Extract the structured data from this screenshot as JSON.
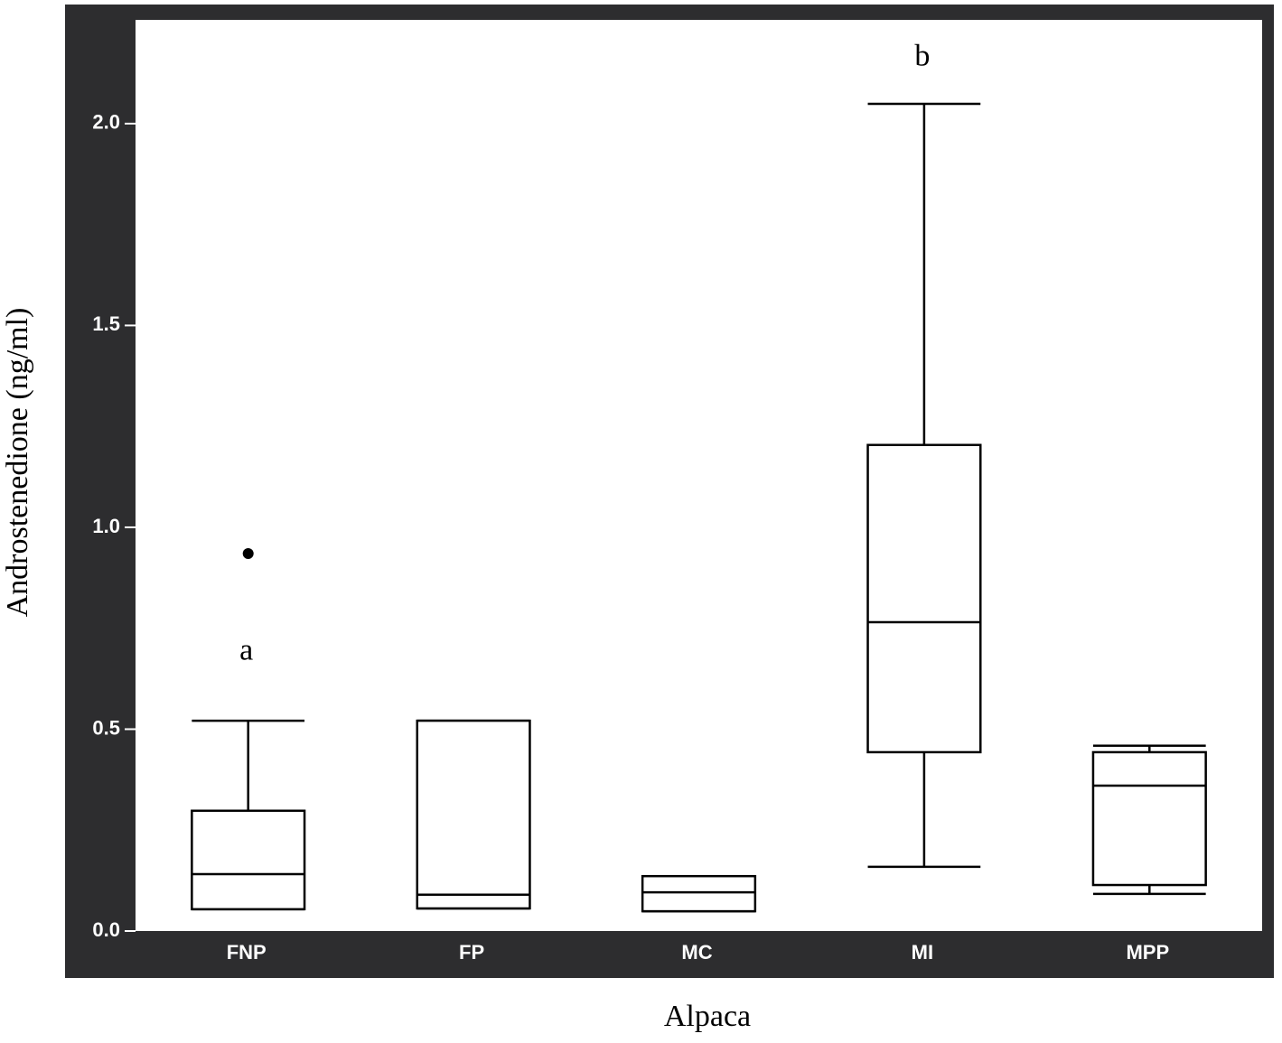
{
  "chart_data": {
    "type": "box",
    "y_label": "Androstenedione (ng/ml)",
    "x_label": "Alpaca",
    "categories": [
      "FNP",
      "FP",
      "MC",
      "MI",
      "MPP"
    ],
    "boxes": [
      {
        "min": 0.054,
        "q1": 0.054,
        "median": 0.141,
        "q3": 0.298,
        "max": 0.521,
        "outliers": [
          0.935
        ]
      },
      {
        "min": 0.056,
        "q1": 0.056,
        "median": 0.09,
        "q3": 0.521,
        "max": 0.521,
        "outliers": []
      },
      {
        "min": 0.049,
        "q1": 0.049,
        "median": 0.096,
        "q3": 0.136,
        "max": 0.136,
        "outliers": []
      },
      {
        "min": 0.159,
        "q1": 0.443,
        "median": 0.765,
        "q3": 1.204,
        "max": 2.049,
        "outliers": []
      },
      {
        "min": 0.092,
        "q1": 0.114,
        "median": 0.36,
        "q3": 0.443,
        "max": 0.459,
        "outliers": []
      }
    ],
    "annotations": [
      {
        "text": "a",
        "category": "FNP",
        "y": 0.69
      },
      {
        "text": "b",
        "category": "MI",
        "y": 2.161
      }
    ],
    "ylim": [
      0,
      2.257
    ],
    "yticks": [
      {
        "value": 0,
        "label": "0.0"
      },
      0.5,
      {
        "value": 1,
        "label": "1.0"
      },
      1.5,
      {
        "value": 2,
        "label": "2.0"
      }
    ],
    "color": "#000000",
    "frame_color": "#2d2d2f"
  }
}
